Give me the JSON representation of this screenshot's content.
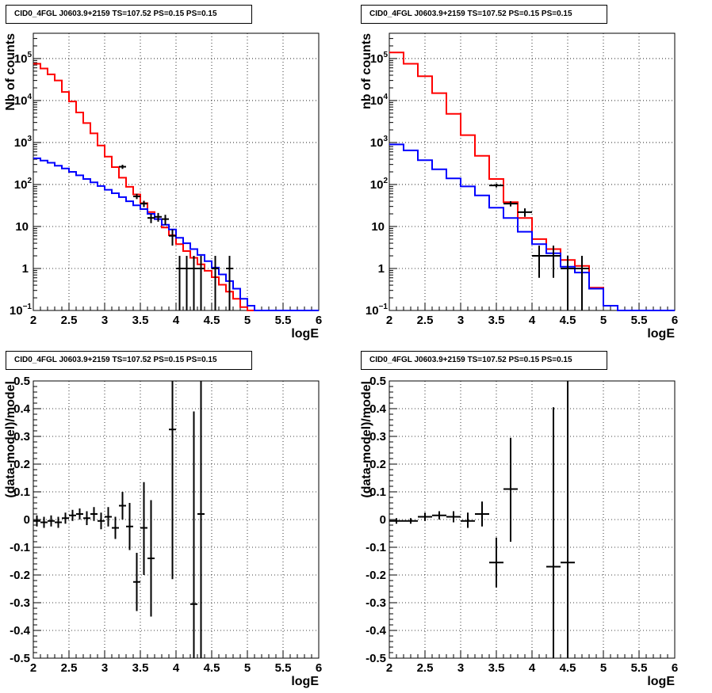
{
  "chart_data": [
    {
      "type": "step-histogram",
      "title": "CID0_4FGL J0603.9+2159 TS=107.52 PS=0.15 PS=0.15",
      "xlabel": "logE",
      "ylabel": "Nb of counts",
      "xlim": [
        2,
        6
      ],
      "ylim": [
        0.1,
        400000
      ],
      "yscale": "log",
      "grid": true,
      "xticks": [
        "2",
        "2.5",
        "3",
        "3.5",
        "4",
        "4.5",
        "5",
        "5.5",
        "6"
      ],
      "yticks": [
        {
          "value": 0.1,
          "label": "10",
          "sup": "−1"
        },
        {
          "value": 1,
          "label": "1",
          "sup": ""
        },
        {
          "value": 10,
          "label": "10",
          "sup": ""
        },
        {
          "value": 100,
          "label": "10",
          "sup": "2"
        },
        {
          "value": 1000,
          "label": "10",
          "sup": "3"
        },
        {
          "value": 10000,
          "label": "10",
          "sup": "4"
        },
        {
          "value": 100000,
          "label": "10",
          "sup": "5"
        }
      ],
      "bin_edges_start": 2,
      "bin_width": 0.1,
      "series": [
        {
          "color": "#ff0000",
          "values": [
            75000,
            58000,
            42000,
            30000,
            16000,
            9500,
            5200,
            2900,
            1650,
            850,
            460,
            260,
            145,
            88,
            58,
            36,
            22,
            15,
            9.5,
            6.2,
            3.8,
            2.6,
            1.8,
            1.25,
            0.88,
            0.62,
            0.41,
            0.28,
            0.19,
            0.12,
            0.1,
            0.1,
            0.1,
            0.1,
            0.1,
            0.1,
            0.1,
            0.1,
            0.1,
            0.1
          ]
        },
        {
          "color": "#0000ff",
          "values": [
            420,
            370,
            330,
            280,
            240,
            200,
            165,
            135,
            112,
            92,
            75,
            62,
            50,
            40,
            32,
            26,
            20,
            15,
            11,
            8.5,
            5.4,
            4.0,
            2.9,
            2.1,
            1.5,
            1.05,
            0.72,
            0.5,
            0.33,
            0.19,
            0.13,
            0.1,
            0.1,
            0.1,
            0.1,
            0.1,
            0.1,
            0.1,
            0.1,
            0.1
          ]
        }
      ],
      "points": [
        {
          "x": 3.25,
          "y": 265,
          "xerr": 0.05,
          "ylo": 235,
          "yhi": 295
        },
        {
          "x": 3.45,
          "y": 52,
          "xerr": 0.05,
          "ylo": 45,
          "yhi": 60
        },
        {
          "x": 3.55,
          "y": 35,
          "xerr": 0.05,
          "ylo": 29,
          "yhi": 41
        },
        {
          "x": 3.65,
          "y": 16,
          "xerr": 0.05,
          "ylo": 12,
          "yhi": 20
        },
        {
          "x": 3.75,
          "y": 17,
          "xerr": 0.05,
          "ylo": 13,
          "yhi": 21
        },
        {
          "x": 3.85,
          "y": 15,
          "xerr": 0.05,
          "ylo": 11,
          "yhi": 19
        },
        {
          "x": 3.95,
          "y": 6,
          "xerr": 0.05,
          "ylo": 3.5,
          "yhi": 8.5
        },
        {
          "x": 4.05,
          "y": 1,
          "xerr": 0.05,
          "ylo": 0.1,
          "yhi": 2
        },
        {
          "x": 4.15,
          "y": 1,
          "xerr": 0.05,
          "ylo": 0.1,
          "yhi": 2
        },
        {
          "x": 4.25,
          "y": 1,
          "xerr": 0.05,
          "ylo": 0.1,
          "yhi": 2
        },
        {
          "x": 4.35,
          "y": 1,
          "xerr": 0.05,
          "ylo": 0.1,
          "yhi": 2
        },
        {
          "x": 4.55,
          "y": 1,
          "xerr": 0.05,
          "ylo": 0.1,
          "yhi": 2
        },
        {
          "x": 4.75,
          "y": 1,
          "xerr": 0.05,
          "ylo": 0.1,
          "yhi": 2
        }
      ]
    },
    {
      "type": "step-histogram",
      "title": "CID0_4FGL J0603.9+2159 TS=107.52 PS=0.15 PS=0.15",
      "xlabel": "logE",
      "ylabel": "nb of counts",
      "xlim": [
        2,
        6
      ],
      "ylim": [
        0.1,
        400000
      ],
      "yscale": "log",
      "grid": true,
      "xticks": [
        "2",
        "2.5",
        "3",
        "3.5",
        "4",
        "4.5",
        "5",
        "5.5",
        "6"
      ],
      "yticks": [
        {
          "value": 0.1,
          "label": "10",
          "sup": "−1"
        },
        {
          "value": 1,
          "label": "1",
          "sup": ""
        },
        {
          "value": 10,
          "label": "10",
          "sup": ""
        },
        {
          "value": 100,
          "label": "10",
          "sup": "2"
        },
        {
          "value": 1000,
          "label": "10",
          "sup": "3"
        },
        {
          "value": 10000,
          "label": "10",
          "sup": "4"
        },
        {
          "value": 100000,
          "label": "10",
          "sup": "5"
        }
      ],
      "bin_edges_start": 2,
      "bin_width": 0.2,
      "series": [
        {
          "color": "#ff0000",
          "values": [
            140000,
            75000,
            38000,
            15000,
            4800,
            1500,
            480,
            135,
            38,
            16,
            5,
            2.9,
            1.6,
            1.15,
            0.35,
            0.13,
            0.1,
            0.1,
            0.1,
            0.1
          ]
        },
        {
          "color": "#0000ff",
          "values": [
            900,
            650,
            380,
            230,
            140,
            90,
            55,
            28,
            16,
            7.5,
            3.8,
            2.3,
            1.1,
            0.8,
            0.33,
            0.13,
            0.1,
            0.1,
            0.1,
            0.1
          ]
        }
      ],
      "points": [
        {
          "x": 3.5,
          "y": 95,
          "xerr": 0.1,
          "ylo": 85,
          "yhi": 105
        },
        {
          "x": 3.7,
          "y": 35,
          "xerr": 0.1,
          "ylo": 30,
          "yhi": 40
        },
        {
          "x": 3.9,
          "y": 22,
          "xerr": 0.1,
          "ylo": 17,
          "yhi": 27
        },
        {
          "x": 4.1,
          "y": 2,
          "xerr": 0.1,
          "ylo": 0.6,
          "yhi": 3.5
        },
        {
          "x": 4.3,
          "y": 2,
          "xerr": 0.1,
          "ylo": 0.6,
          "yhi": 3.5
        },
        {
          "x": 4.5,
          "y": 1,
          "xerr": 0.1,
          "ylo": 0.1,
          "yhi": 2
        },
        {
          "x": 4.7,
          "y": 1,
          "xerr": 0.1,
          "ylo": 0.1,
          "yhi": 2
        }
      ]
    },
    {
      "type": "scatter",
      "title": "CID0_4FGL J0603.9+2159 TS=107.52 PS=0.15 PS=0.15",
      "xlabel": "logE",
      "ylabel": "(data-model)/model",
      "xlim": [
        2,
        6
      ],
      "ylim": [
        -0.5,
        0.5
      ],
      "grid": true,
      "xticks": [
        "2",
        "2.5",
        "3",
        "3.5",
        "4",
        "4.5",
        "5",
        "5.5",
        "6"
      ],
      "yticks": [
        "-0.5",
        "-0.4",
        "-0.3",
        "-0.2",
        "-0.1",
        "0",
        "0.1",
        "0.2",
        "0.3",
        "0.4",
        "0.5"
      ],
      "points": [
        {
          "x": 2.05,
          "y": -0.005,
          "xerr": 0.05,
          "ylo": -0.025,
          "yhi": 0.015
        },
        {
          "x": 2.15,
          "y": -0.01,
          "xerr": 0.05,
          "ylo": -0.03,
          "yhi": 0.01
        },
        {
          "x": 2.25,
          "y": -0.005,
          "xerr": 0.05,
          "ylo": -0.025,
          "yhi": 0.015
        },
        {
          "x": 2.35,
          "y": -0.01,
          "xerr": 0.05,
          "ylo": -0.03,
          "yhi": 0.01
        },
        {
          "x": 2.45,
          "y": 0.005,
          "xerr": 0.05,
          "ylo": -0.015,
          "yhi": 0.025
        },
        {
          "x": 2.55,
          "y": 0.015,
          "xerr": 0.05,
          "ylo": -0.005,
          "yhi": 0.035
        },
        {
          "x": 2.65,
          "y": 0.02,
          "xerr": 0.05,
          "ylo": 0.0,
          "yhi": 0.04
        },
        {
          "x": 2.75,
          "y": 0.005,
          "xerr": 0.05,
          "ylo": -0.02,
          "yhi": 0.03
        },
        {
          "x": 2.85,
          "y": 0.02,
          "xerr": 0.05,
          "ylo": -0.005,
          "yhi": 0.045
        },
        {
          "x": 2.95,
          "y": -0.005,
          "xerr": 0.05,
          "ylo": -0.035,
          "yhi": 0.025
        },
        {
          "x": 3.05,
          "y": 0.01,
          "xerr": 0.05,
          "ylo": -0.025,
          "yhi": 0.045
        },
        {
          "x": 3.15,
          "y": -0.03,
          "xerr": 0.05,
          "ylo": -0.07,
          "yhi": 0.01
        },
        {
          "x": 3.25,
          "y": 0.05,
          "xerr": 0.05,
          "ylo": 0.0,
          "yhi": 0.1
        },
        {
          "x": 3.35,
          "y": -0.025,
          "xerr": 0.05,
          "ylo": -0.11,
          "yhi": 0.06
        },
        {
          "x": 3.45,
          "y": -0.225,
          "xerr": 0.05,
          "ylo": -0.33,
          "yhi": -0.12
        },
        {
          "x": 3.55,
          "y": -0.03,
          "xerr": 0.05,
          "ylo": -0.2,
          "yhi": 0.135
        },
        {
          "x": 3.65,
          "y": -0.14,
          "xerr": 0.05,
          "ylo": -0.35,
          "yhi": 0.07
        },
        {
          "x": 3.95,
          "y": 0.325,
          "xerr": 0.05,
          "ylo": -0.215,
          "yhi": 0.5
        },
        {
          "x": 4.25,
          "y": -0.305,
          "xerr": 0.05,
          "ylo": -0.5,
          "yhi": 0.39
        },
        {
          "x": 4.35,
          "y": 0.02,
          "xerr": 0.05,
          "ylo": -0.5,
          "yhi": 0.5
        }
      ]
    },
    {
      "type": "scatter",
      "title": "CID0_4FGL J0603.9+2159 TS=107.52 PS=0.15 PS=0.15",
      "xlabel": "logE",
      "ylabel": "(data-model)/model",
      "xlim": [
        2,
        6
      ],
      "ylim": [
        -0.5,
        0.5
      ],
      "grid": true,
      "xticks": [
        "2",
        "2.5",
        "3",
        "3.5",
        "4",
        "4.5",
        "5",
        "5.5",
        "6"
      ],
      "yticks": [
        "-0.5",
        "-0.4",
        "-0.3",
        "-0.2",
        "-0.1",
        "0",
        "0.1",
        "0.2",
        "0.3",
        "0.4",
        "0.5"
      ],
      "points": [
        {
          "x": 2.1,
          "y": -0.005,
          "xerr": 0.1,
          "ylo": -0.015,
          "yhi": 0.005
        },
        {
          "x": 2.3,
          "y": -0.005,
          "xerr": 0.1,
          "ylo": -0.015,
          "yhi": 0.005
        },
        {
          "x": 2.5,
          "y": 0.01,
          "xerr": 0.1,
          "ylo": -0.005,
          "yhi": 0.025
        },
        {
          "x": 2.7,
          "y": 0.015,
          "xerr": 0.1,
          "ylo": 0.0,
          "yhi": 0.03
        },
        {
          "x": 2.9,
          "y": 0.01,
          "xerr": 0.1,
          "ylo": -0.01,
          "yhi": 0.03
        },
        {
          "x": 3.1,
          "y": -0.005,
          "xerr": 0.1,
          "ylo": -0.03,
          "yhi": 0.025
        },
        {
          "x": 3.3,
          "y": 0.02,
          "xerr": 0.1,
          "ylo": -0.025,
          "yhi": 0.065
        },
        {
          "x": 3.5,
          "y": -0.155,
          "xerr": 0.1,
          "ylo": -0.245,
          "yhi": -0.065
        },
        {
          "x": 3.7,
          "y": 0.11,
          "xerr": 0.1,
          "ylo": -0.08,
          "yhi": 0.295
        },
        {
          "x": 4.3,
          "y": -0.17,
          "xerr": 0.1,
          "ylo": -0.5,
          "yhi": 0.405
        },
        {
          "x": 4.5,
          "y": -0.155,
          "xerr": 0.1,
          "ylo": -0.5,
          "yhi": 0.5
        }
      ]
    }
  ]
}
